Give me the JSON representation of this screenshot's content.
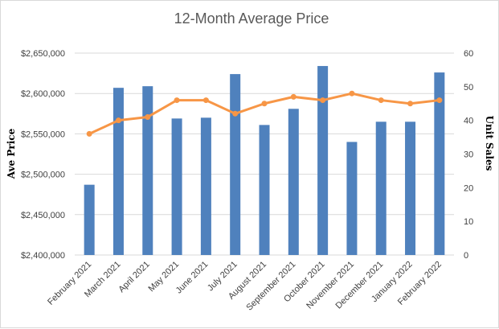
{
  "chart_data": {
    "type": "bar+line",
    "title": "12-Month Average Price",
    "categories": [
      "February 2021",
      "March 2021",
      "April 2021",
      "May 2021",
      "June 2021",
      "July 2021",
      "August 2021",
      "September 2021",
      "October 2021",
      "November 2021",
      "December 2021",
      "January 2022",
      "February 2022"
    ],
    "series": [
      {
        "kind": "bar",
        "axis": "left",
        "color": "#4f81bd",
        "values": [
          2487000,
          2607000,
          2609000,
          2569000,
          2570000,
          2624000,
          2561000,
          2581000,
          2634000,
          2540000,
          2565000,
          2565000,
          2626000
        ]
      },
      {
        "kind": "line",
        "axis": "right",
        "color": "#f79646",
        "values": [
          36,
          40,
          41,
          46,
          46,
          42,
          45,
          47,
          46,
          48,
          46,
          45,
          46
        ]
      }
    ],
    "ylabel": "Ave Price",
    "ylim": [
      2400000,
      2650000
    ],
    "y_ticks": [
      "$2,400,000",
      "$2,450,000",
      "$2,500,000",
      "$2,550,000",
      "$2,600,000",
      "$2,650,000"
    ],
    "y2label": "Unit Sales",
    "y2lim": [
      0,
      60
    ],
    "y2_ticks": [
      "0",
      "10",
      "20",
      "30",
      "40",
      "50",
      "60"
    ],
    "grid": true,
    "legend": "none"
  }
}
